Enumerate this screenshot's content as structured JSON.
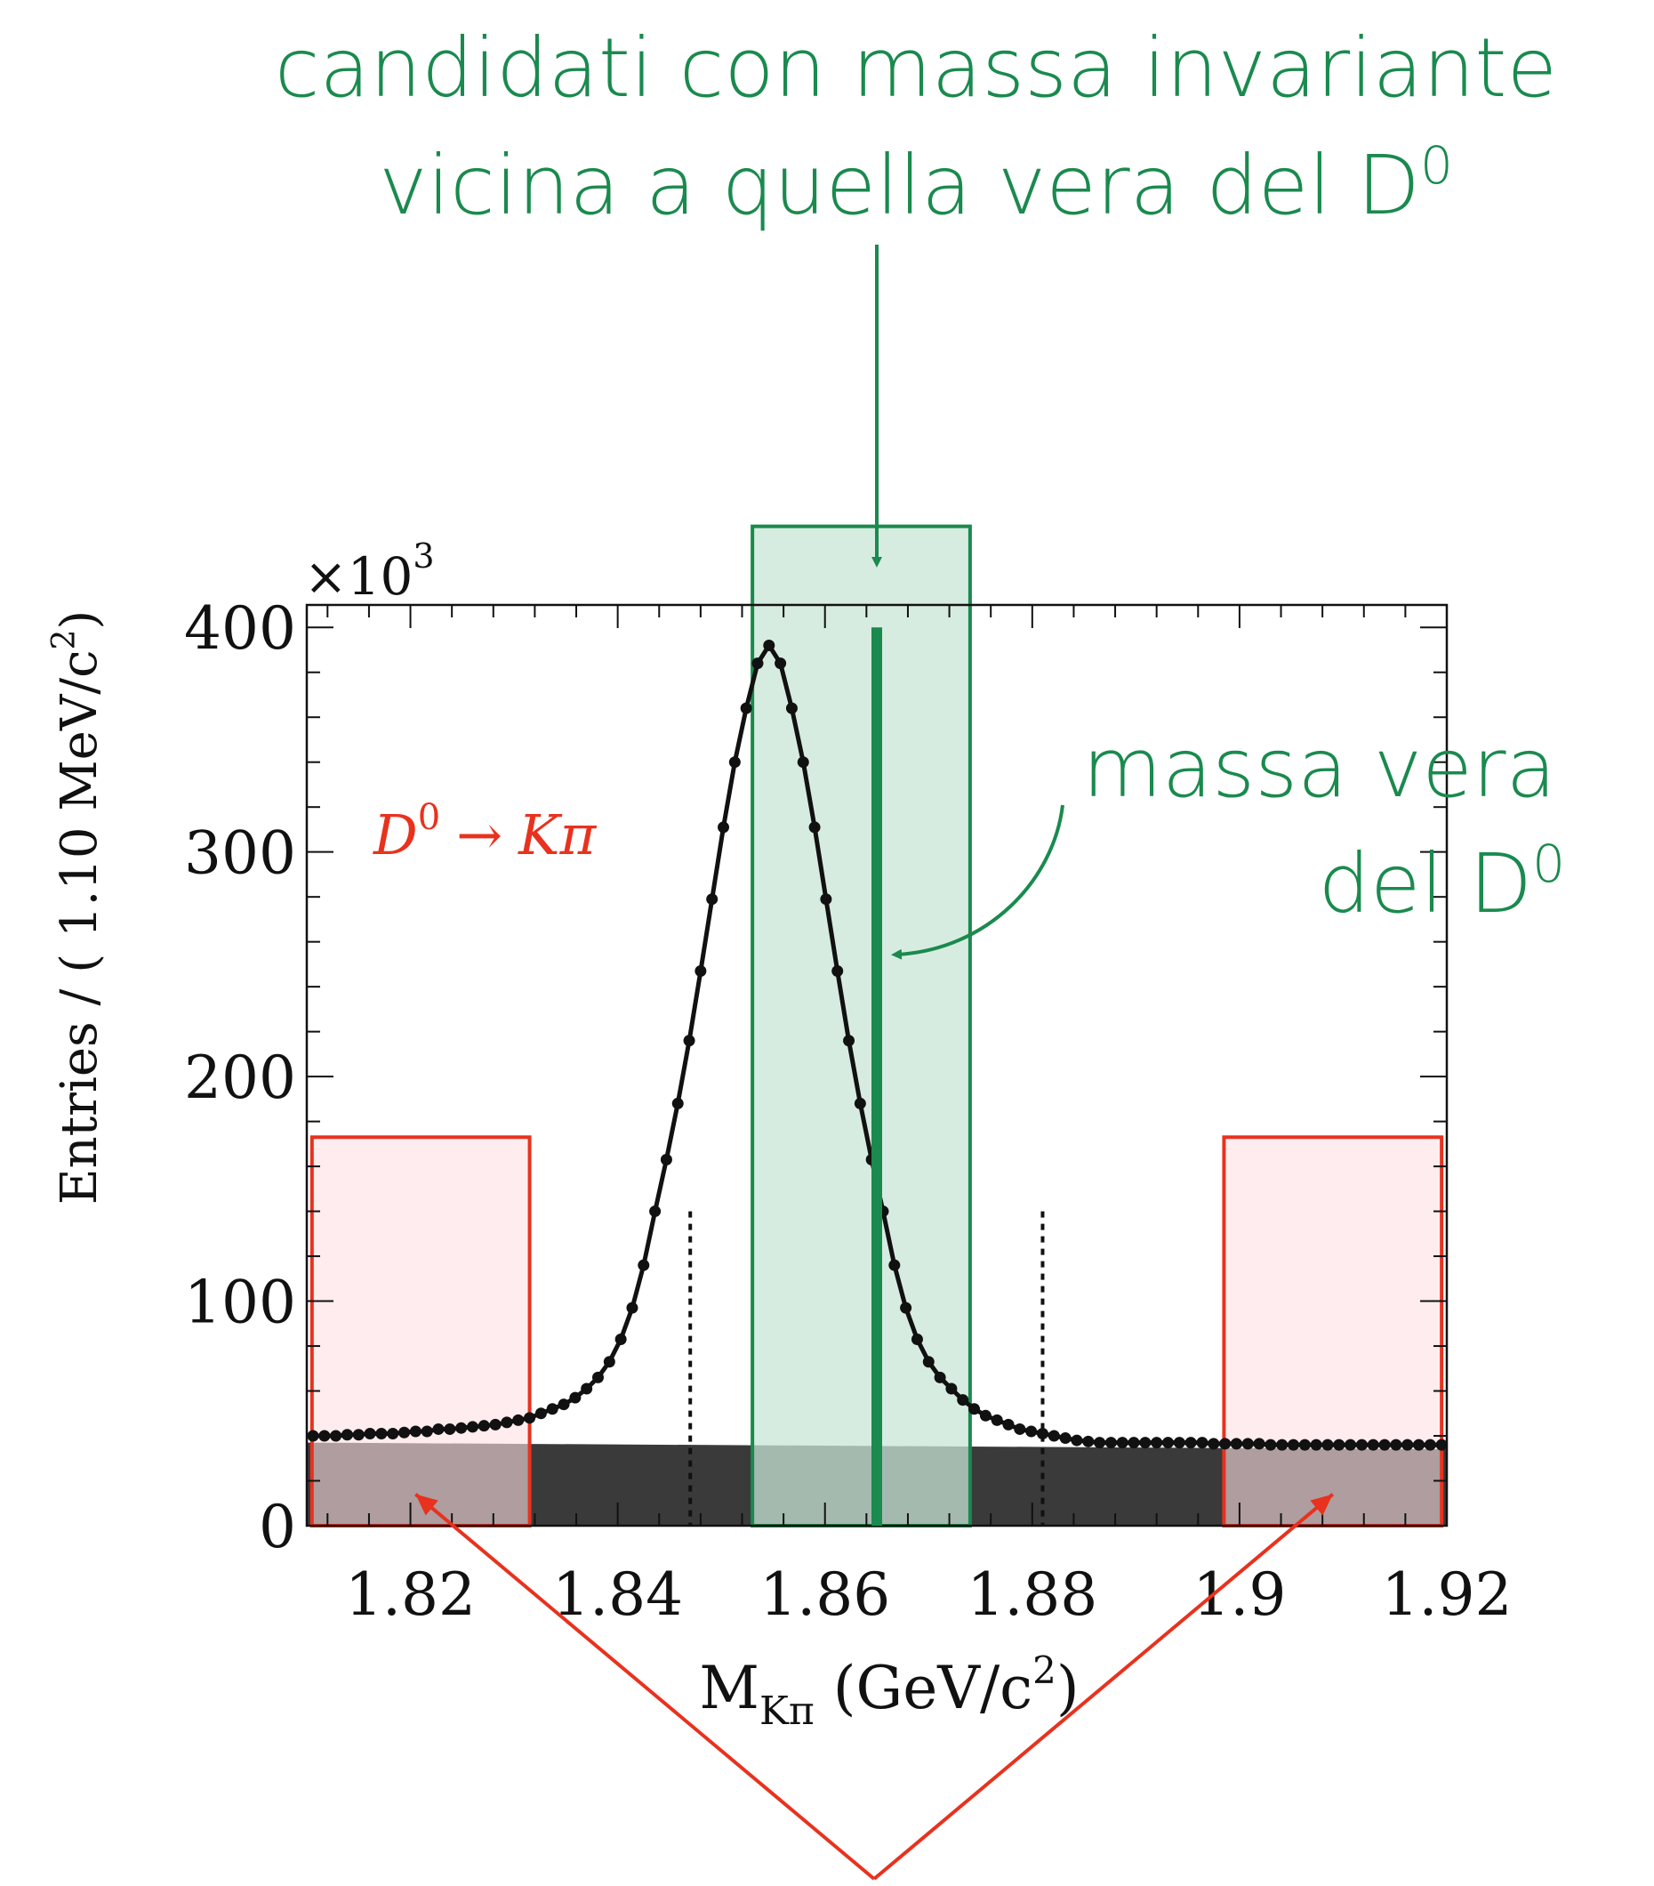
{
  "annotations": {
    "top_line1": "candidati con massa invariante",
    "top_line2_prefix": "vicina a quella vera del D",
    "top_line2_sup": "0",
    "true_mass_line1": "massa vera",
    "true_mass_line2_prefix": "del D",
    "true_mass_line2_sup": "0",
    "decay_D": "D",
    "decay_sup": "0",
    "decay_arrow": "→",
    "decay_rest": "Kπ"
  },
  "axes": {
    "multiplier_prefix": "×10",
    "multiplier_sup": "3",
    "ylabel_prefix": "Entries / ( 1.10 MeV/c",
    "ylabel_sup": "2",
    "ylabel_suffix": ")",
    "xlabel_M": "M",
    "xlabel_sub": "Kπ",
    "xlabel_mid": " (GeV/c",
    "xlabel_sup": "2",
    "xlabel_end": ")"
  },
  "colors": {
    "signal": "#1a8a4e",
    "signal_fill": "#c9e6d6",
    "sideband": "#e8321e",
    "sideband_fill": "#fde0e3",
    "data": "#111111",
    "background": "#3a3a3a"
  },
  "chart_data": {
    "type": "scatter",
    "xlim": [
      1.81,
      1.92
    ],
    "ylim": [
      0,
      410
    ],
    "xticks": [
      "1.82",
      "1.84",
      "1.86",
      "1.88",
      "1.9",
      "1.92"
    ],
    "xtick_values": [
      1.82,
      1.84,
      1.86,
      1.88,
      1.9,
      1.92
    ],
    "yticks": [
      "0",
      "100",
      "200",
      "300",
      "400"
    ],
    "ytick_values": [
      0,
      100,
      200,
      300,
      400
    ],
    "true_mass": 1.865,
    "signal_window": [
      1.853,
      1.874
    ],
    "signal_window_top": 445,
    "sideband_windows": [
      [
        1.8105,
        1.8315
      ],
      [
        1.8985,
        1.9195
      ]
    ],
    "sideband_top": 173,
    "dotted_cut_lines": [
      1.847,
      1.881
    ],
    "dotted_cut_top": 140,
    "background_level": [
      37,
      34
    ],
    "x": [
      1.8106,
      1.8117,
      1.8128,
      1.8139,
      1.815,
      1.8161,
      1.8172,
      1.8183,
      1.8194,
      1.8205,
      1.8216,
      1.8227,
      1.8238,
      1.8249,
      1.826,
      1.8271,
      1.8282,
      1.8293,
      1.8304,
      1.8315,
      1.8326,
      1.8337,
      1.8348,
      1.8359,
      1.837,
      1.8381,
      1.8392,
      1.8403,
      1.8414,
      1.8425,
      1.8436,
      1.8447,
      1.8458,
      1.8469,
      1.848,
      1.8491,
      1.8502,
      1.8513,
      1.8524,
      1.8535,
      1.8546,
      1.8557,
      1.8568,
      1.8579,
      1.859,
      1.8601,
      1.8612,
      1.8623,
      1.8634,
      1.8645,
      1.8656,
      1.8667,
      1.8678,
      1.8689,
      1.87,
      1.8711,
      1.8722,
      1.8733,
      1.8744,
      1.8755,
      1.8766,
      1.8777,
      1.8788,
      1.8799,
      1.881,
      1.8821,
      1.8832,
      1.8843,
      1.8854,
      1.8865,
      1.8876,
      1.8887,
      1.8898,
      1.8909,
      1.892,
      1.8931,
      1.8942,
      1.8953,
      1.8964,
      1.8975,
      1.8986,
      1.8997,
      1.9008,
      1.9019,
      1.903,
      1.9041,
      1.9052,
      1.9063,
      1.9074,
      1.9085,
      1.9096,
      1.9107,
      1.9118,
      1.9129,
      1.914,
      1.9151,
      1.9162,
      1.9173,
      1.9184,
      1.9195
    ],
    "y": [
      40,
      40,
      40,
      40.5,
      40.5,
      41,
      41,
      41,
      41.5,
      42,
      42,
      43,
      43,
      43.5,
      44,
      44.5,
      45,
      46,
      47,
      48,
      50,
      52,
      54,
      57,
      61,
      66,
      73,
      83,
      97,
      116,
      140,
      163,
      188,
      216,
      247,
      279,
      311,
      340,
      364,
      384,
      392,
      384,
      364,
      340,
      311,
      279,
      247,
      216,
      188,
      163,
      140,
      116,
      97,
      83,
      73,
      66,
      61,
      56,
      52,
      49,
      47,
      45,
      43,
      42,
      41,
      40,
      39,
      38,
      37.5,
      37,
      37,
      37,
      37,
      37,
      37,
      37,
      37,
      37,
      37,
      36.5,
      36.5,
      36.5,
      36.5,
      36.5,
      36,
      36,
      36,
      36,
      36,
      36,
      36,
      36,
      36,
      36,
      36,
      36,
      36,
      36,
      36,
      36
    ]
  }
}
